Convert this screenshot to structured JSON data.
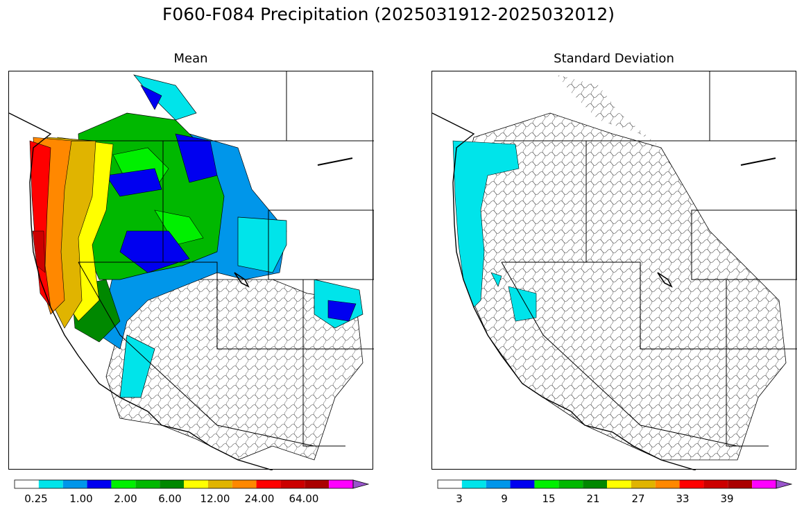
{
  "figure": {
    "title": "F060-F084 Precipitation (2025031912-2025032012)"
  },
  "panels": [
    {
      "title": "Mean",
      "colorbar": {
        "colors": [
          "#ffffff",
          "#00e4ea",
          "#0096ea",
          "#0000f0",
          "#00f000",
          "#00b800",
          "#008800",
          "#ffff00",
          "#e0b400",
          "#ff8800",
          "#ff0000",
          "#cc0000",
          "#aa0000",
          "#ff00ff",
          "#9955cc"
        ],
        "extend": "max",
        "tick_labels": [
          "0.25",
          "1.00",
          "2.00",
          "6.00",
          "12.00",
          "24.00",
          "64.00"
        ]
      }
    },
    {
      "title": "Standard Deviation",
      "colorbar": {
        "colors": [
          "#ffffff",
          "#00e4ea",
          "#0096ea",
          "#0000f0",
          "#00f000",
          "#00b800",
          "#008800",
          "#ffff00",
          "#e0b400",
          "#ff8800",
          "#ff0000",
          "#cc0000",
          "#aa0000",
          "#ff00ff",
          "#9955cc"
        ],
        "extend": "max",
        "tick_labels": [
          "3",
          "9",
          "15",
          "21",
          "27",
          "33",
          "39"
        ]
      }
    }
  ]
}
